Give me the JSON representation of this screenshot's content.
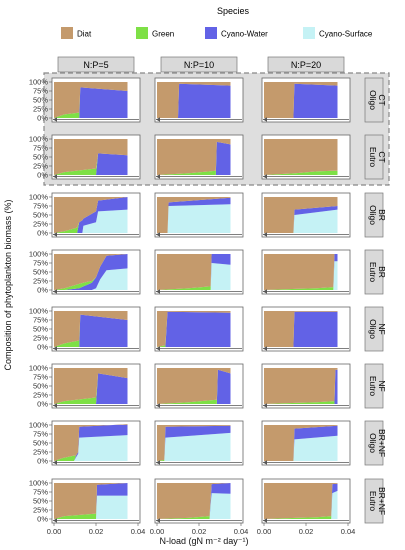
{
  "chart_data": {
    "type": "area",
    "layout": "faceted grid, stacked area (fraction of total biomass)",
    "legend": {
      "title": "Species",
      "placement": "top",
      "entries": [
        {
          "name": "Diat",
          "color": "#c49a6c"
        },
        {
          "name": "Green",
          "color": "#7ee046"
        },
        {
          "name": "Cyano-Water",
          "color": "#6262e6"
        },
        {
          "name": "Cyano-Surface",
          "color": "#c5f2f5"
        }
      ]
    },
    "xlabel": "N-load (gN m⁻² day⁻¹)",
    "ylabel": "Composition of phytoplankton biomass (%)",
    "xlim": [
      0,
      0.04
    ],
    "ylim": [
      0,
      100
    ],
    "x_ticks": [
      "0.00",
      "0.02",
      "0.04"
    ],
    "y_ticks": [
      "0%",
      "25%",
      "50%",
      "75%",
      "100%"
    ],
    "highlight": "dashed grey box around the two CT rows",
    "columns": [
      "N:P=5",
      "N:P=10",
      "N:P=20"
    ],
    "rows": [
      {
        "scenario": "CT",
        "trophic": "Oligo"
      },
      {
        "scenario": "CT",
        "trophic": "Eutro"
      },
      {
        "scenario": "BR",
        "trophic": "Oligo"
      },
      {
        "scenario": "BR",
        "trophic": "Eutro"
      },
      {
        "scenario": "NF",
        "trophic": "Oligo"
      },
      {
        "scenario": "NF",
        "trophic": "Eutro"
      },
      {
        "scenario": "BR+NF",
        "trophic": "Oligo"
      },
      {
        "scenario": "BR+NF",
        "trophic": "Eutro"
      }
    ],
    "panels": [
      [
        {
          "x": [
            0,
            0.005,
            0.012,
            0.0125,
            0.035
          ],
          "green": [
            0,
            10,
            15,
            0,
            0
          ],
          "cw": [
            0,
            0,
            0,
            85,
            75
          ],
          "cs": [
            0,
            0,
            0,
            0,
            0
          ]
        },
        {
          "x": [
            0,
            0.005,
            0.02,
            0.021,
            0.035
          ],
          "green": [
            0,
            8,
            18,
            0,
            0
          ],
          "cw": [
            0,
            0,
            0,
            60,
            55
          ],
          "cs": [
            0,
            0,
            0,
            0,
            0
          ]
        },
        {
          "x": [
            0,
            0.005,
            0.011,
            0.012,
            0.0135,
            0.014,
            0.02,
            0.021,
            0.035
          ],
          "green": [
            0,
            5,
            15,
            0,
            0,
            0,
            0,
            0,
            0
          ],
          "cw": [
            0,
            0,
            0,
            30,
            35,
            20,
            30,
            30,
            35
          ],
          "cs": [
            0,
            0,
            0,
            0,
            0,
            20,
            30,
            60,
            65
          ]
        },
        {
          "x": [
            0,
            0.005,
            0.012,
            0.014,
            0.016,
            0.018,
            0.02,
            0.022,
            0.025,
            0.035
          ],
          "green": [
            0,
            5,
            12,
            10,
            8,
            5,
            0,
            0,
            0,
            0
          ],
          "cw": [
            0,
            0,
            5,
            10,
            15,
            20,
            30,
            35,
            40,
            40
          ],
          "cs": [
            0,
            0,
            0,
            0,
            0,
            0,
            5,
            30,
            55,
            60
          ]
        },
        {
          "x": [
            0,
            0.005,
            0.012,
            0.0125,
            0.035
          ],
          "green": [
            0,
            10,
            18,
            0,
            0
          ],
          "cw": [
            0,
            0,
            0,
            90,
            75
          ],
          "cs": [
            0,
            0,
            0,
            0,
            0
          ]
        },
        {
          "x": [
            0,
            0.005,
            0.02,
            0.021,
            0.035
          ],
          "green": [
            0,
            8,
            18,
            0,
            0
          ],
          "cw": [
            0,
            0,
            0,
            85,
            72
          ],
          "cs": [
            0,
            0,
            0,
            0,
            0
          ]
        },
        {
          "x": [
            0,
            0.004,
            0.0095,
            0.0105,
            0.0115,
            0.012,
            0.035
          ],
          "green": [
            0,
            8,
            15,
            0,
            0,
            0,
            0
          ],
          "cw": [
            0,
            0,
            0,
            5,
            5,
            30,
            30
          ],
          "cs": [
            0,
            0,
            0,
            10,
            20,
            65,
            72
          ]
        },
        {
          "x": [
            0,
            0.005,
            0.02,
            0.0205,
            0.035
          ],
          "green": [
            0,
            8,
            15,
            0,
            0
          ],
          "cw": [
            0,
            0,
            0,
            30,
            35
          ],
          "cs": [
            0,
            0,
            0,
            65,
            65
          ]
        }
      ],
      [
        {
          "x": [
            0,
            0.005,
            0.01,
            0.0105,
            0.035
          ],
          "green": [
            0,
            0,
            0,
            0,
            0
          ],
          "cw": [
            0,
            0,
            0,
            95,
            90
          ],
          "cs": [
            0,
            0,
            0,
            0,
            0
          ]
        },
        {
          "x": [
            0,
            0.015,
            0.025,
            0.028,
            0.0285,
            0.035
          ],
          "green": [
            0,
            5,
            10,
            12,
            0,
            0
          ],
          "cw": [
            0,
            0,
            0,
            0,
            92,
            85
          ],
          "cs": [
            0,
            0,
            0,
            0,
            0,
            0
          ]
        },
        {
          "x": [
            0,
            0.005,
            0.0055,
            0.035
          ],
          "green": [
            0,
            0,
            0,
            0
          ],
          "cw": [
            0,
            0,
            10,
            18
          ],
          "cs": [
            0,
            0,
            75,
            80
          ]
        },
        {
          "x": [
            0,
            0.015,
            0.0255,
            0.026,
            0.035
          ],
          "green": [
            0,
            5,
            10,
            0,
            0
          ],
          "cw": [
            0,
            0,
            0,
            25,
            30
          ],
          "cs": [
            0,
            0,
            0,
            75,
            70
          ]
        },
        {
          "x": [
            0,
            0.004,
            0.005,
            0.035
          ],
          "green": [
            0,
            5,
            0,
            0
          ],
          "cw": [
            0,
            0,
            98,
            95
          ],
          "cs": [
            0,
            0,
            0,
            0
          ]
        },
        {
          "x": [
            0,
            0.015,
            0.025,
            0.0285,
            0.029,
            0.035
          ],
          "green": [
            0,
            5,
            10,
            12,
            0,
            0
          ],
          "cw": [
            0,
            0,
            0,
            0,
            95,
            85
          ],
          "cs": [
            0,
            0,
            0,
            0,
            0,
            0
          ]
        },
        {
          "x": [
            0,
            0.0035,
            0.004,
            0.035
          ],
          "green": [
            0,
            3,
            0,
            0
          ],
          "cw": [
            0,
            0,
            30,
            20
          ],
          "cs": [
            0,
            0,
            65,
            78
          ]
        },
        {
          "x": [
            0,
            0.015,
            0.025,
            0.026,
            0.035
          ],
          "green": [
            0,
            3,
            8,
            0,
            0
          ],
          "cw": [
            0,
            0,
            0,
            25,
            30
          ],
          "cs": [
            0,
            0,
            0,
            72,
            70
          ]
        }
      ],
      [
        {
          "x": [
            0,
            0.014,
            0.0145,
            0.035
          ],
          "green": [
            0,
            0,
            0,
            0
          ],
          "cw": [
            0,
            0,
            95,
            90
          ],
          "cs": [
            0,
            0,
            0,
            0
          ]
        },
        {
          "x": [
            0,
            0.015,
            0.025,
            0.033,
            0.035
          ],
          "green": [
            0,
            5,
            10,
            12,
            12
          ],
          "cw": [
            0,
            0,
            0,
            0,
            0
          ],
          "cs": [
            0,
            0,
            0,
            0,
            0
          ]
        },
        {
          "x": [
            0,
            0.014,
            0.0145,
            0.035
          ],
          "green": [
            0,
            0,
            0,
            0
          ],
          "cw": [
            0,
            0,
            15,
            10
          ],
          "cs": [
            0,
            0,
            50,
            65
          ]
        },
        {
          "x": [
            0,
            0.015,
            0.025,
            0.033,
            0.0335,
            0.035
          ],
          "green": [
            0,
            3,
            5,
            8,
            0,
            0
          ],
          "cw": [
            0,
            0,
            0,
            0,
            20,
            20
          ],
          "cs": [
            0,
            0,
            0,
            0,
            80,
            80
          ]
        },
        {
          "x": [
            0,
            0.014,
            0.0145,
            0.035
          ],
          "green": [
            0,
            0,
            0,
            0
          ],
          "cw": [
            0,
            0,
            98,
            98
          ],
          "cs": [
            0,
            0,
            0,
            0
          ]
        },
        {
          "x": [
            0,
            0.015,
            0.025,
            0.0335,
            0.034,
            0.035
          ],
          "green": [
            0,
            3,
            5,
            8,
            0,
            0
          ],
          "cw": [
            0,
            0,
            0,
            0,
            95,
            95
          ],
          "cs": [
            0,
            0,
            0,
            0,
            0,
            0
          ]
        },
        {
          "x": [
            0,
            0.014,
            0.0145,
            0.035
          ],
          "green": [
            0,
            0,
            0,
            0
          ],
          "cw": [
            0,
            0,
            30,
            28
          ],
          "cs": [
            0,
            0,
            60,
            70
          ]
        },
        {
          "x": [
            0,
            0.015,
            0.025,
            0.032,
            0.0325,
            0.035
          ],
          "green": [
            0,
            3,
            5,
            8,
            0,
            0
          ],
          "cw": [
            0,
            0,
            0,
            0,
            25,
            20
          ],
          "cs": [
            0,
            0,
            0,
            0,
            72,
            78
          ]
        }
      ]
    ]
  }
}
